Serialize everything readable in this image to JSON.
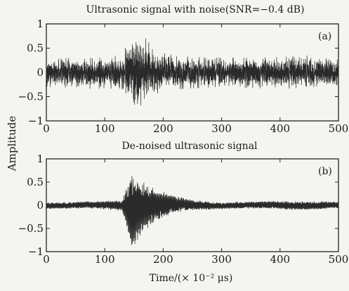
{
  "chart_data": [
    {
      "type": "line",
      "title": "Ultrasonic signal with noise(SNR=−0.4 dB)",
      "panel_label": "(a)",
      "xlim": [
        0,
        500
      ],
      "ylim": [
        -1,
        1
      ],
      "xticks": [
        0,
        100,
        200,
        300,
        400,
        500
      ],
      "yticks": [
        -1,
        -0.5,
        0,
        0.5,
        1
      ],
      "xtick_labels": [
        "0",
        "100",
        "200",
        "300",
        "400",
        "500"
      ],
      "ytick_labels": [
        "−1",
        "−0.5",
        "0",
        "0.5",
        "1"
      ],
      "grid": false,
      "envelope": {
        "x": [
          0,
          20,
          40,
          60,
          80,
          100,
          120,
          130,
          140,
          145,
          150,
          160,
          170,
          180,
          190,
          200,
          220,
          250,
          300,
          350,
          400,
          450,
          500
        ],
        "upper": [
          0.25,
          0.28,
          0.3,
          0.32,
          0.3,
          0.3,
          0.35,
          0.4,
          0.6,
          0.8,
          0.85,
          0.8,
          0.7,
          0.55,
          0.45,
          0.4,
          0.35,
          0.32,
          0.3,
          0.3,
          0.32,
          0.35,
          0.3
        ],
        "lower": [
          -0.3,
          -0.3,
          -0.32,
          -0.3,
          -0.35,
          -0.32,
          -0.35,
          -0.4,
          -0.6,
          -0.7,
          -0.75,
          -0.7,
          -0.6,
          -0.5,
          -0.45,
          -0.4,
          -0.35,
          -0.33,
          -0.3,
          -0.32,
          -0.35,
          -0.3,
          -0.3
        ]
      }
    },
    {
      "type": "line",
      "title": "De-noised ultrasonic signal",
      "panel_label": "(b)",
      "xlim": [
        0,
        500
      ],
      "ylim": [
        -1,
        1
      ],
      "xticks": [
        0,
        100,
        200,
        300,
        400,
        500
      ],
      "yticks": [
        -1,
        -0.5,
        0,
        0.5,
        1
      ],
      "xtick_labels": [
        "0",
        "100",
        "200",
        "300",
        "400",
        "500"
      ],
      "ytick_labels": [
        "−1",
        "−0.5",
        "0",
        "0.5",
        "1"
      ],
      "grid": false,
      "envelope": {
        "x": [
          0,
          50,
          100,
          130,
          140,
          145,
          150,
          160,
          170,
          180,
          200,
          220,
          250,
          300,
          350,
          400,
          450,
          500
        ],
        "upper": [
          0.08,
          0.08,
          0.09,
          0.12,
          0.6,
          0.95,
          0.9,
          0.7,
          0.55,
          0.42,
          0.3,
          0.2,
          0.12,
          0.08,
          0.08,
          0.1,
          0.1,
          0.08
        ],
        "lower": [
          -0.08,
          -0.08,
          -0.1,
          -0.12,
          -0.6,
          -0.95,
          -0.9,
          -0.7,
          -0.55,
          -0.42,
          -0.3,
          -0.2,
          -0.12,
          -0.08,
          -0.08,
          -0.1,
          -0.1,
          -0.08
        ]
      }
    }
  ],
  "shared": {
    "xlabel": "Time/(× 10⁻² μs)",
    "ylabel": "Amplitude"
  }
}
